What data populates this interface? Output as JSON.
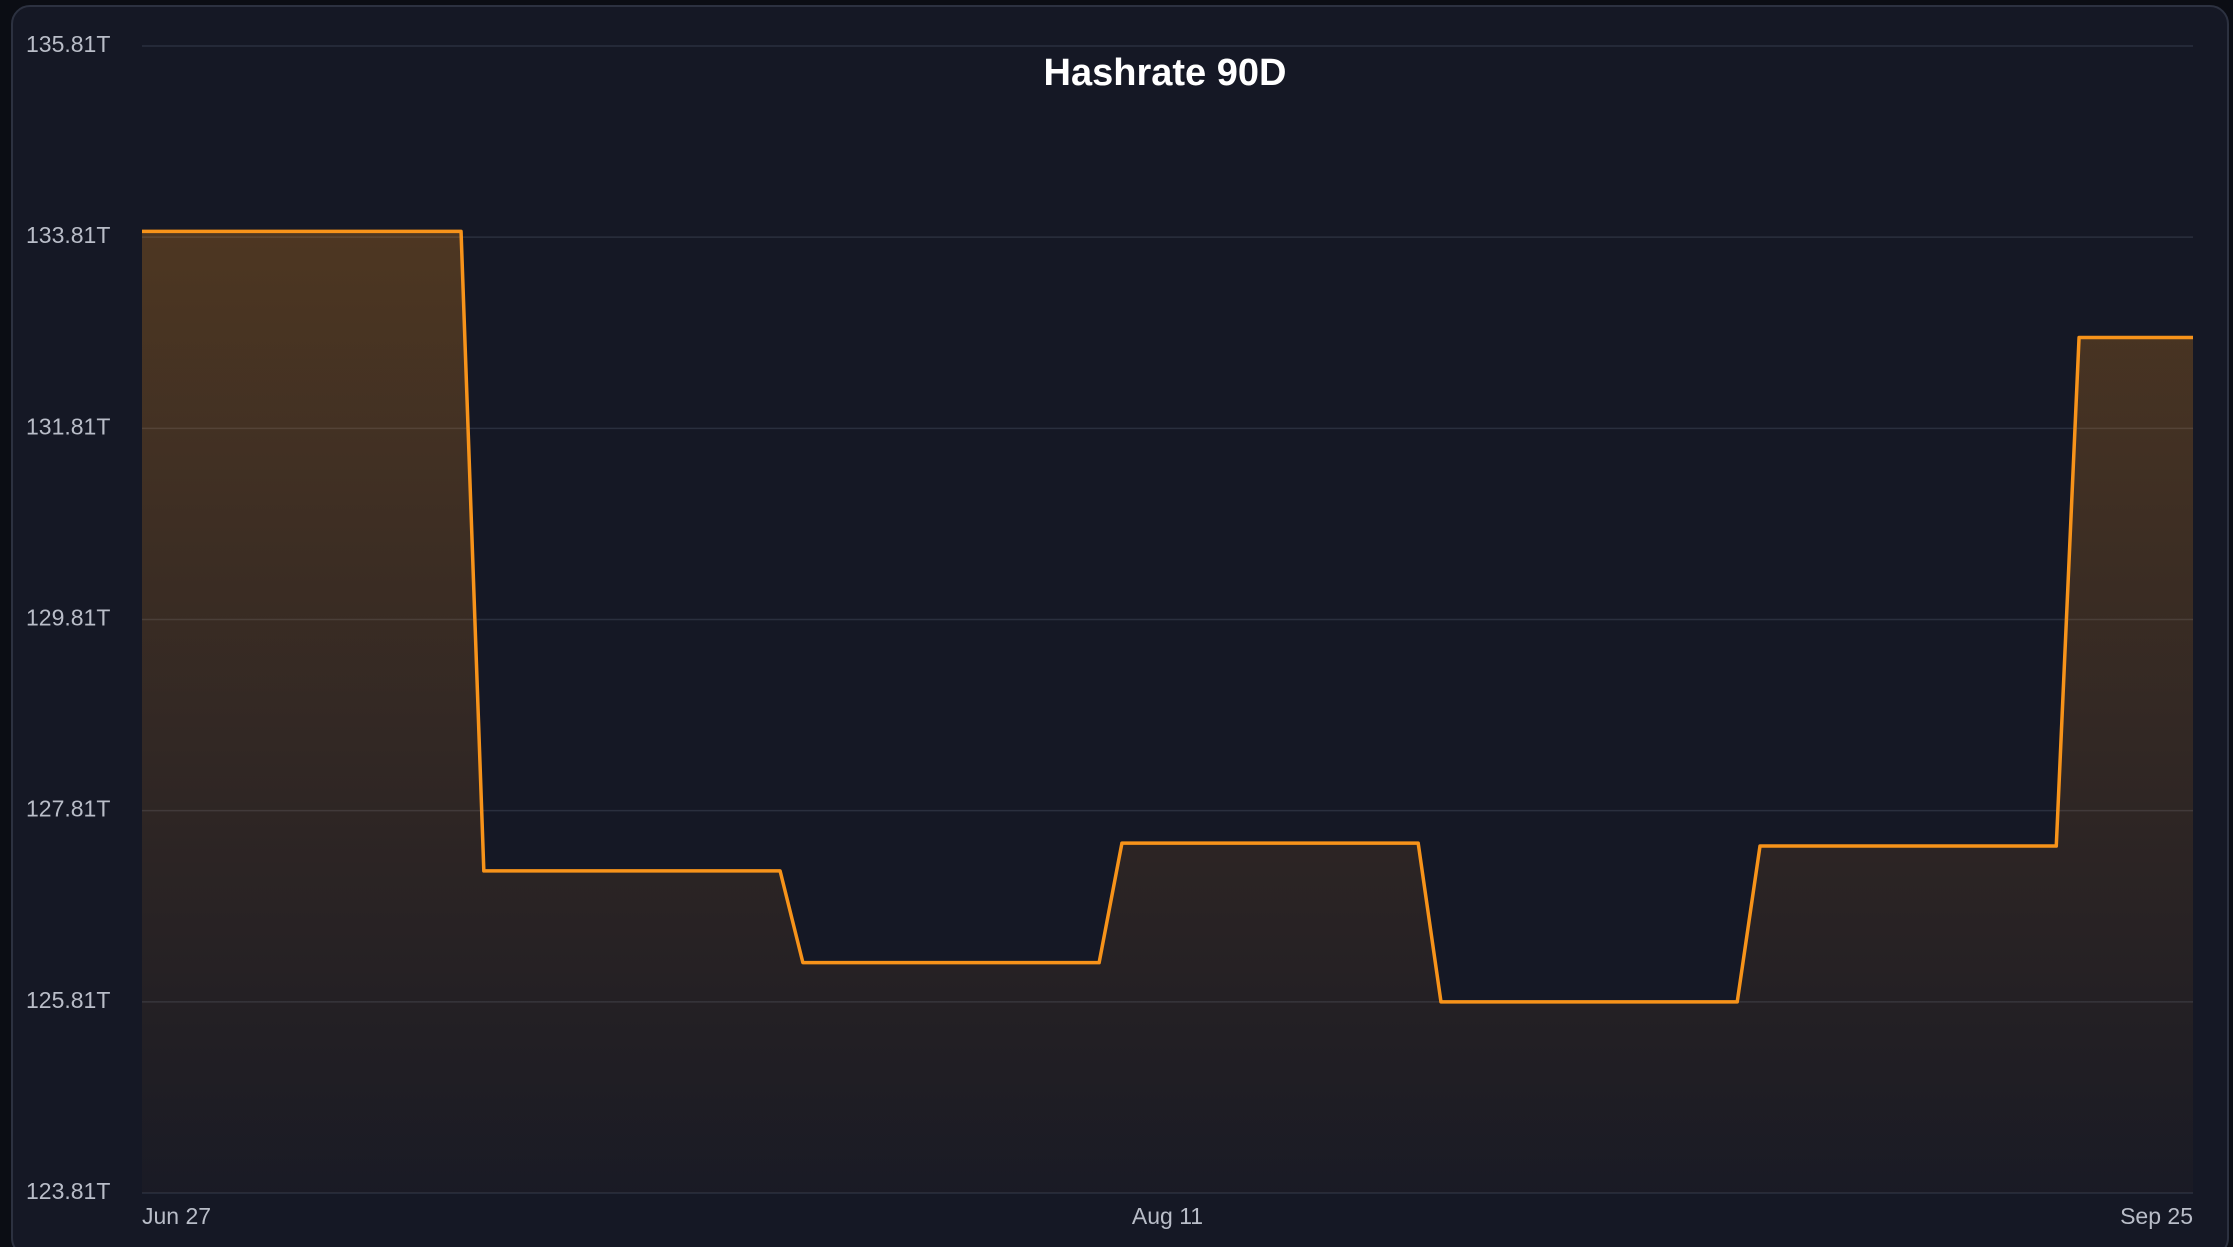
{
  "chart_data": {
    "type": "line",
    "title": "Hashrate 90D",
    "categories": [
      "Jun 27",
      null,
      null,
      null,
      null,
      null,
      null,
      null,
      null,
      null,
      null,
      null,
      null,
      null,
      null,
      null,
      null,
      null,
      null,
      null,
      null,
      null,
      null,
      null,
      null,
      null,
      null,
      null,
      null,
      null,
      null,
      null,
      null,
      null,
      null,
      null,
      null,
      null,
      null,
      null,
      null,
      null,
      null,
      null,
      null,
      "Aug 11",
      null,
      null,
      null,
      null,
      null,
      null,
      null,
      null,
      null,
      null,
      null,
      null,
      null,
      null,
      null,
      null,
      null,
      null,
      null,
      null,
      null,
      null,
      null,
      null,
      null,
      null,
      null,
      null,
      null,
      null,
      null,
      null,
      null,
      null,
      null,
      null,
      null,
      null,
      null,
      null,
      null,
      null,
      null,
      null,
      "Sep 25"
    ],
    "series": [
      {
        "color": "#f7931a",
        "values": [
          133.87,
          133.87,
          133.87,
          133.87,
          133.87,
          133.87,
          133.87,
          133.87,
          133.87,
          133.87,
          133.87,
          133.87,
          133.87,
          133.87,
          133.87,
          127.18,
          127.18,
          127.18,
          127.18,
          127.18,
          127.18,
          127.18,
          127.18,
          127.18,
          127.18,
          127.18,
          127.18,
          127.18,
          127.18,
          126.22,
          126.22,
          126.22,
          126.22,
          126.22,
          126.22,
          126.22,
          126.22,
          126.22,
          126.22,
          126.22,
          126.22,
          126.22,
          126.22,
          127.47,
          127.47,
          127.47,
          127.47,
          127.47,
          127.47,
          127.47,
          127.47,
          127.47,
          127.47,
          127.47,
          127.47,
          127.47,
          127.47,
          125.81,
          125.81,
          125.81,
          125.81,
          125.81,
          125.81,
          125.81,
          125.81,
          125.81,
          125.81,
          125.81,
          125.81,
          125.81,
          125.81,
          127.44,
          127.44,
          127.44,
          127.44,
          127.44,
          127.44,
          127.44,
          127.44,
          127.44,
          127.44,
          127.44,
          127.44,
          127.44,
          127.44,
          132.76,
          132.76,
          132.76,
          132.76,
          132.76,
          132.76
        ]
      }
    ],
    "ylim": [
      123.81,
      135.81
    ],
    "yticks": [
      {
        "value": 123.81,
        "label": "123.81T"
      },
      {
        "value": 125.81,
        "label": "125.81T"
      },
      {
        "value": 127.81,
        "label": "127.81T"
      },
      {
        "value": 129.81,
        "label": "129.81T"
      },
      {
        "value": 131.81,
        "label": "131.81T"
      },
      {
        "value": 133.81,
        "label": "133.81T"
      },
      {
        "value": 135.81,
        "label": "135.81T"
      }
    ],
    "grid": true
  }
}
